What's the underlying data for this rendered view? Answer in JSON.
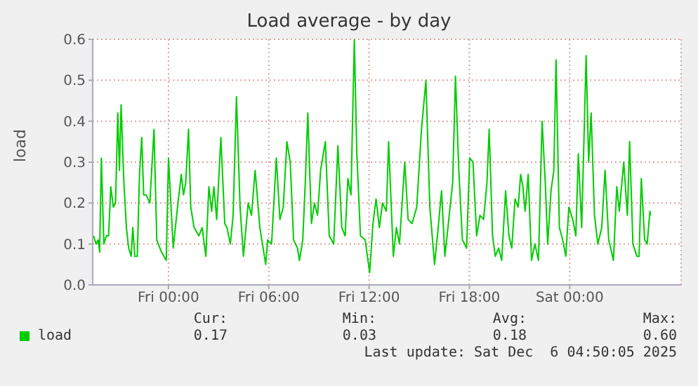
{
  "chart_data": {
    "type": "line",
    "title": "Load average - by day",
    "ylabel": "load",
    "x": [
      "2025-12-04T19:31",
      "2025-12-04T19:40",
      "2025-12-04T19:48",
      "2025-12-04T19:53",
      "2025-12-04T19:59",
      "2025-12-04T20:08",
      "2025-12-04T20:17",
      "2025-12-04T20:25",
      "2025-12-04T20:33",
      "2025-12-04T20:42",
      "2025-12-04T20:50",
      "2025-12-04T20:58",
      "2025-12-04T21:04",
      "2025-12-04T21:10",
      "2025-12-04T21:20",
      "2025-12-04T21:29",
      "2025-12-04T21:37",
      "2025-12-04T21:46",
      "2025-12-04T21:52",
      "2025-12-04T21:59",
      "2025-12-04T22:08",
      "2025-12-04T22:16",
      "2025-12-04T22:24",
      "2025-12-04T22:31",
      "2025-12-04T22:40",
      "2025-12-04T22:53",
      "2025-12-04T23:08",
      "2025-12-04T23:18",
      "2025-12-04T23:35",
      "2025-12-04T23:52",
      "2025-12-05T00:00",
      "2025-12-05T00:17",
      "2025-12-05T00:34",
      "2025-12-05T00:46",
      "2025-12-05T00:54",
      "2025-12-05T01:02",
      "2025-12-05T01:12",
      "2025-12-05T01:20",
      "2025-12-05T01:32",
      "2025-12-05T01:49",
      "2025-12-05T02:01",
      "2025-12-05T02:14",
      "2025-12-05T02:25",
      "2025-12-05T02:35",
      "2025-12-05T02:43",
      "2025-12-05T02:53",
      "2025-12-05T03:08",
      "2025-12-05T03:22",
      "2025-12-05T03:30",
      "2025-12-05T03:42",
      "2025-12-05T03:52",
      "2025-12-05T04:04",
      "2025-12-05T04:17",
      "2025-12-05T04:29",
      "2025-12-05T04:46",
      "2025-12-05T04:58",
      "2025-12-05T05:11",
      "2025-12-05T05:28",
      "2025-12-05T05:49",
      "2025-12-05T05:56",
      "2025-12-05T06:10",
      "2025-12-05T06:27",
      "2025-12-05T06:40",
      "2025-12-05T06:52",
      "2025-12-05T07:05",
      "2025-12-05T07:17",
      "2025-12-05T07:29",
      "2025-12-05T07:43",
      "2025-12-05T07:50",
      "2025-12-05T08:02",
      "2025-12-05T08:11",
      "2025-12-05T08:20",
      "2025-12-05T08:33",
      "2025-12-05T08:44",
      "2025-12-05T08:55",
      "2025-12-05T09:06",
      "2025-12-05T09:23",
      "2025-12-05T09:37",
      "2025-12-05T09:53",
      "2025-12-05T10:08",
      "2025-12-05T10:22",
      "2025-12-05T10:34",
      "2025-12-05T10:44",
      "2025-12-05T10:55",
      "2025-12-05T11:07",
      "2025-12-05T11:16",
      "2025-12-05T11:29",
      "2025-12-05T11:46",
      "2025-12-05T12:02",
      "2025-12-05T12:14",
      "2025-12-05T12:25",
      "2025-12-05T12:37",
      "2025-12-05T12:48",
      "2025-12-05T13:02",
      "2025-12-05T13:10",
      "2025-12-05T13:27",
      "2025-12-05T13:38",
      "2025-12-05T13:49",
      "2025-12-05T14:08",
      "2025-12-05T14:20",
      "2025-12-05T14:34",
      "2025-12-05T14:51",
      "2025-12-05T15:08",
      "2025-12-05T15:24",
      "2025-12-05T15:38",
      "2025-12-05T15:55",
      "2025-12-05T16:08",
      "2025-12-05T16:20",
      "2025-12-05T16:32",
      "2025-12-05T16:43",
      "2025-12-05T17:00",
      "2025-12-05T17:10",
      "2025-12-05T17:22",
      "2025-12-05T17:35",
      "2025-12-05T17:50",
      "2025-12-05T18:01",
      "2025-12-05T18:13",
      "2025-12-05T18:26",
      "2025-12-05T18:38",
      "2025-12-05T18:51",
      "2025-12-05T19:03",
      "2025-12-05T19:11",
      "2025-12-05T19:23",
      "2025-12-05T19:33",
      "2025-12-05T19:45",
      "2025-12-05T19:56",
      "2025-12-05T20:10",
      "2025-12-05T20:22",
      "2025-12-05T20:32",
      "2025-12-05T20:44",
      "2025-12-05T20:55",
      "2025-12-05T21:04",
      "2025-12-05T21:12",
      "2025-12-05T21:20",
      "2025-12-05T21:31",
      "2025-12-05T21:43",
      "2025-12-05T21:55",
      "2025-12-05T22:08",
      "2025-12-05T22:21",
      "2025-12-05T22:33",
      "2025-12-05T22:41",
      "2025-12-05T22:53",
      "2025-12-05T23:03",
      "2025-12-05T23:11",
      "2025-12-05T23:23",
      "2025-12-05T23:35",
      "2025-12-05T23:46",
      "2025-12-05T23:57",
      "2025-12-06T00:11",
      "2025-12-06T00:22",
      "2025-12-06T00:31",
      "2025-12-06T00:43",
      "2025-12-06T00:59",
      "2025-12-06T01:08",
      "2025-12-06T01:17",
      "2025-12-06T01:29",
      "2025-12-06T01:41",
      "2025-12-06T01:55",
      "2025-12-06T02:07",
      "2025-12-06T02:20",
      "2025-12-06T02:37",
      "2025-12-06T02:49",
      "2025-12-06T02:58",
      "2025-12-06T03:14",
      "2025-12-06T03:27",
      "2025-12-06T03:35",
      "2025-12-06T03:47",
      "2025-12-06T04:01",
      "2025-12-06T04:09",
      "2025-12-06T04:17",
      "2025-12-06T04:29",
      "2025-12-06T04:38",
      "2025-12-06T04:48",
      "2025-12-06T04:50"
    ],
    "series": [
      {
        "name": "load",
        "color": "#00cc00",
        "values": [
          0.12,
          0.1,
          0.11,
          0.08,
          0.31,
          0.1,
          0.12,
          0.12,
          0.24,
          0.19,
          0.2,
          0.42,
          0.28,
          0.44,
          0.25,
          0.14,
          0.09,
          0.07,
          0.14,
          0.07,
          0.07,
          0.27,
          0.36,
          0.22,
          0.22,
          0.2,
          0.38,
          0.11,
          0.08,
          0.06,
          0.31,
          0.09,
          0.2,
          0.27,
          0.22,
          0.25,
          0.38,
          0.19,
          0.14,
          0.12,
          0.14,
          0.07,
          0.24,
          0.18,
          0.24,
          0.16,
          0.36,
          0.15,
          0.14,
          0.1,
          0.17,
          0.46,
          0.19,
          0.07,
          0.2,
          0.17,
          0.28,
          0.14,
          0.05,
          0.11,
          0.1,
          0.31,
          0.16,
          0.19,
          0.35,
          0.3,
          0.11,
          0.09,
          0.06,
          0.11,
          0.25,
          0.42,
          0.15,
          0.2,
          0.17,
          0.28,
          0.35,
          0.12,
          0.1,
          0.34,
          0.14,
          0.12,
          0.26,
          0.22,
          0.6,
          0.32,
          0.12,
          0.11,
          0.03,
          0.15,
          0.21,
          0.14,
          0.2,
          0.18,
          0.35,
          0.07,
          0.14,
          0.1,
          0.3,
          0.16,
          0.15,
          0.19,
          0.38,
          0.5,
          0.19,
          0.05,
          0.14,
          0.23,
          0.07,
          0.14,
          0.25,
          0.51,
          0.28,
          0.11,
          0.09,
          0.31,
          0.3,
          0.12,
          0.17,
          0.16,
          0.25,
          0.38,
          0.12,
          0.07,
          0.09,
          0.06,
          0.23,
          0.12,
          0.09,
          0.21,
          0.19,
          0.27,
          0.24,
          0.18,
          0.27,
          0.06,
          0.1,
          0.06,
          0.4,
          0.24,
          0.1,
          0.23,
          0.28,
          0.55,
          0.14,
          0.11,
          0.07,
          0.19,
          0.16,
          0.12,
          0.32,
          0.14,
          0.56,
          0.3,
          0.42,
          0.17,
          0.1,
          0.14,
          0.28,
          0.11,
          0.06,
          0.24,
          0.18,
          0.3,
          0.17,
          0.35,
          0.1,
          0.07,
          0.07,
          0.26,
          0.11,
          0.1,
          0.18,
          0.17
        ]
      }
    ],
    "xlim": [
      "2025-12-04T19:28",
      "2025-12-06T06:40"
    ],
    "xticks": [
      {
        "value": "2025-12-05T00:00",
        "label": "Fri 00:00"
      },
      {
        "value": "2025-12-05T06:00",
        "label": "Fri 06:00"
      },
      {
        "value": "2025-12-05T12:00",
        "label": "Fri 12:00"
      },
      {
        "value": "2025-12-05T18:00",
        "label": "Fri 18:00"
      },
      {
        "value": "2025-12-06T00:00",
        "label": "Sat 00:00"
      }
    ],
    "ylim": [
      0,
      0.6
    ],
    "yticks": [
      {
        "value": 0,
        "label": "0.0"
      },
      0.1,
      0.2,
      0.3,
      0.4,
      0.5,
      0.6
    ],
    "grid": true,
    "legend": "bottom left",
    "marker": "none",
    "line_style": "solid",
    "annotations": [
      "Cur:",
      "Min:",
      "Avg:",
      "Max:",
      "0.17",
      "0.03",
      "0.18",
      "0.60",
      "Last update: Sat Dec  6 04:50:05 2025"
    ]
  }
}
